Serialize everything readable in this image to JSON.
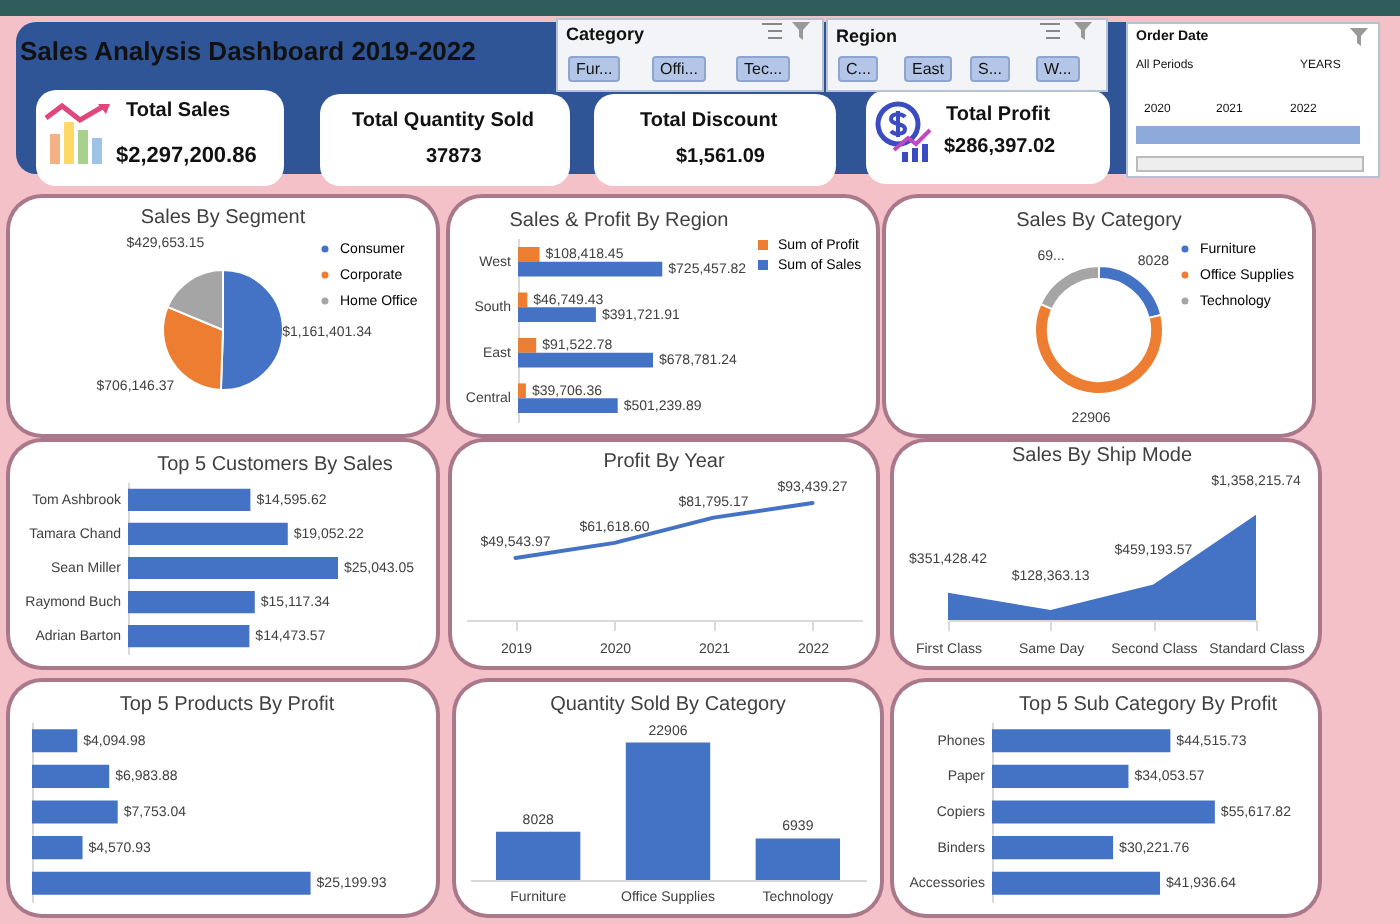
{
  "chart_data": [
    {
      "type": "other",
      "title": "Sales Analysis Dashboard 2019-2022",
      "annotations": [
        "Total Sales",
        "$2,297,200.86",
        "Total Quantity Sold",
        "37873",
        "Total Discount",
        "$1,561.09",
        "Total Profit",
        "$286,397.02",
        "Category",
        "Fur...",
        "Offi...",
        "Tec...",
        "Region",
        "C...",
        "East",
        "S...",
        "W...",
        "Order Date",
        "All Periods",
        "YEARS",
        "2020",
        "2021",
        "2022"
      ]
    },
    {
      "type": "pie",
      "title": "Sales By Segment",
      "categories": [
        "Consumer",
        "Corporate",
        "Home Office"
      ],
      "values": [
        1161401.34,
        706146.37,
        429653.15
      ],
      "value_labels": [
        "$1,161,401.34",
        "$706,146.37",
        "$429,653.15"
      ],
      "colors": [
        "#4472c4",
        "#ed7d31",
        "#a5a5a5"
      ],
      "legend": "right"
    },
    {
      "type": "bar",
      "orientation": "horizontal",
      "title": "Sales & Profit By Region",
      "categories": [
        "West",
        "South",
        "East",
        "Central"
      ],
      "legend": "top right",
      "series": [
        {
          "name": "Sum of Profit",
          "color": "#ed7d31",
          "values": [
            108418.45,
            46749.43,
            91522.78,
            39706.36
          ],
          "value_labels": [
            "$108,418.45",
            "$46,749.43",
            "$91,522.78",
            "$39,706.36"
          ]
        },
        {
          "name": "Sum of Sales",
          "color": "#4472c4",
          "values": [
            725457.82,
            391721.91,
            678781.24,
            501239.89
          ],
          "value_labels": [
            "$725,457.82",
            "$391,721.91",
            "$678,781.24",
            "$501,239.89"
          ]
        }
      ]
    },
    {
      "type": "donut",
      "title": "Sales By Category",
      "categories": [
        "Furniture",
        "Office Supplies",
        "Technology"
      ],
      "values": [
        8028,
        22906,
        6939
      ],
      "value_labels": [
        "8028",
        "22906",
        "69..."
      ],
      "colors": [
        "#4472c4",
        "#ed7d31",
        "#a5a5a5"
      ],
      "legend": "right"
    },
    {
      "type": "bar",
      "orientation": "horizontal",
      "title": "Top 5 Customers By Sales",
      "categories": [
        "Tom Ashbrook",
        "Tamara Chand",
        "Sean Miller",
        "Raymond Buch",
        "Adrian Barton"
      ],
      "values": [
        14595.62,
        19052.22,
        25043.05,
        15117.34,
        14473.57
      ],
      "value_labels": [
        "$14,595.62",
        "$19,052.22",
        "$25,043.05",
        "$15,117.34",
        "$14,473.57"
      ],
      "color": "#4472c4"
    },
    {
      "type": "line",
      "title": "Profit By Year",
      "categories": [
        "2019",
        "2020",
        "2021",
        "2022"
      ],
      "values": [
        49543.97,
        61618.6,
        81795.17,
        93439.27
      ],
      "value_labels": [
        "$49,543.97",
        "$61,618.60",
        "$81,795.17",
        "$93,439.27"
      ],
      "color": "#4472c4"
    },
    {
      "type": "area",
      "title": "Sales By Ship Mode",
      "categories": [
        "First Class",
        "Same Day",
        "Second Class",
        "Standard Class"
      ],
      "values": [
        351428.42,
        128363.13,
        459193.57,
        1358215.74
      ],
      "value_labels": [
        "$351,428.42",
        "$128,363.13",
        "$459,193.57",
        "$1,358,215.74"
      ],
      "color": "#4472c4"
    },
    {
      "type": "bar",
      "orientation": "horizontal",
      "title": "Top 5 Products By Profit",
      "categories": [
        null,
        null,
        null,
        null,
        null
      ],
      "values": [
        4094.98,
        6983.88,
        7753.04,
        4570.93,
        25199.93
      ],
      "value_labels": [
        "$4,094.98",
        "$6,983.88",
        "$7,753.04",
        "$4,570.93",
        "$25,199.93"
      ],
      "color": "#4472c4"
    },
    {
      "type": "bar",
      "title": "Quantity Sold By Category",
      "categories": [
        "Furniture",
        "Office Supplies",
        "Technology"
      ],
      "values": [
        8028,
        22906,
        6939
      ],
      "data_labels": true,
      "color": "#4472c4"
    },
    {
      "type": "bar",
      "orientation": "horizontal",
      "title": "Top 5 Sub Category By Profit",
      "categories": [
        "Phones",
        "Paper",
        "Copiers",
        "Binders",
        "Accessories"
      ],
      "values": [
        44515.73,
        34053.57,
        55617.82,
        30221.76,
        41936.64
      ],
      "value_labels": [
        "$44,515.73",
        "$34,053.57",
        "$55,617.82",
        "$30,221.76",
        "$41,936.64"
      ],
      "color": "#4472c4"
    }
  ]
}
